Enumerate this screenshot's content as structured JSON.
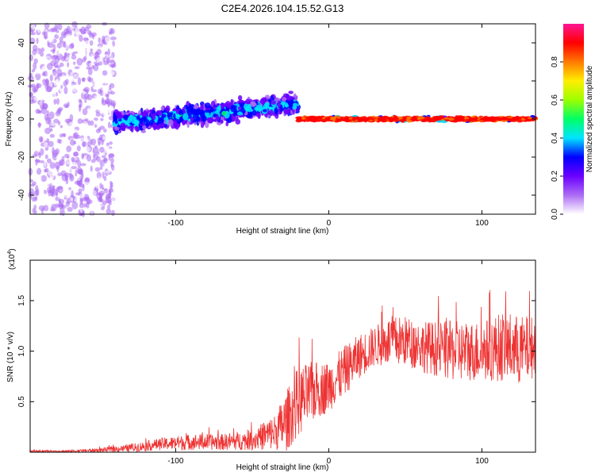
{
  "title": "C2E4.2026.104.15.52.G13",
  "chart_data": [
    {
      "type": "heatmap",
      "name": "spectrogram",
      "xlabel": "Height of straight line (km)",
      "ylabel": "Frequency (Hz)",
      "xlim": [
        -195,
        135
      ],
      "ylim": [
        -50,
        50
      ],
      "x_ticks": [
        -100,
        0,
        100
      ],
      "x_tick_labels": [
        "-100",
        "0",
        "100"
      ],
      "y_ticks": [
        -40,
        -20,
        0,
        20,
        40
      ],
      "y_tick_labels": [
        "-40",
        "-20",
        "0",
        "20",
        "40"
      ],
      "colorbar": {
        "label": "Normalized spectral amplitude",
        "range": [
          0,
          1
        ],
        "ticks": [
          0.0,
          0.2,
          0.4,
          0.6,
          0.8
        ],
        "tick_labels": [
          "0.0",
          "0.2",
          "0.4",
          "0.6",
          "0.8"
        ],
        "colors": [
          "#ffffff",
          "#ac6cf4",
          "#6b00ff",
          "#0000ff",
          "#00e5ff",
          "#00ff66",
          "#9cff00",
          "#ffee00",
          "#ff7a00",
          "#ff0000",
          "#ff1493"
        ]
      },
      "regions": [
        {
          "desc": "noise",
          "x_range": [
            -195,
            -140
          ],
          "freq_spread": 50,
          "amplitude": 0.12
        },
        {
          "desc": "weak signal",
          "x_range": [
            -140,
            -20
          ],
          "freq_center": [
            -2,
            8
          ],
          "freq_spread": 8,
          "amplitude": 0.25
        },
        {
          "desc": "strong tone",
          "x_range": [
            -20,
            135
          ],
          "freq_center": [
            0,
            0
          ],
          "freq_spread": 2,
          "amplitude": 0.85
        }
      ]
    },
    {
      "type": "line",
      "name": "snr",
      "xlabel": "Height of straight line (km)",
      "ylabel": "SNR (10 * v/v)",
      "y_scale_label": "(x10",
      "y_scale_exp": "4",
      "xlim": [
        -195,
        135
      ],
      "ylim": [
        0,
        1.9
      ],
      "x_ticks": [
        -100,
        0,
        100
      ],
      "x_tick_labels": [
        "-100",
        "0",
        "100"
      ],
      "y_ticks": [
        0.5,
        1.0,
        1.5
      ],
      "y_tick_labels": [
        "0.5",
        "1.0",
        "1.5"
      ],
      "color": "#ee3333",
      "envelope": {
        "x": [
          -195,
          -170,
          -150,
          -130,
          -110,
          -90,
          -70,
          -50,
          -35,
          -28,
          -20,
          -10,
          0,
          10,
          20,
          30,
          40,
          50,
          60,
          80,
          100,
          115,
          125,
          135
        ],
        "mean": [
          0.01,
          0.01,
          0.02,
          0.04,
          0.08,
          0.1,
          0.1,
          0.12,
          0.2,
          0.3,
          0.5,
          0.6,
          0.65,
          0.8,
          0.95,
          1.05,
          1.1,
          1.1,
          1.05,
          1.0,
          1.0,
          1.05,
          1.0,
          1.05
        ],
        "spread": [
          0.01,
          0.01,
          0.02,
          0.04,
          0.06,
          0.08,
          0.08,
          0.1,
          0.18,
          0.3,
          0.35,
          0.3,
          0.25,
          0.25,
          0.22,
          0.2,
          0.25,
          0.25,
          0.25,
          0.3,
          0.3,
          0.35,
          0.35,
          0.3
        ]
      }
    }
  ]
}
